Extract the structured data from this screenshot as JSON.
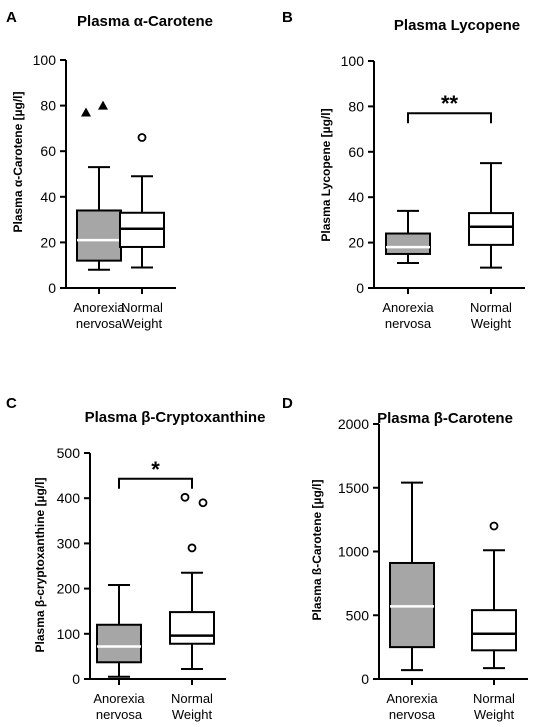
{
  "chart_data": [
    {
      "panel": "A",
      "type": "boxplot",
      "title": "Plasma α-Carotene",
      "ylabel": "Plasma α-Carotene [µg/l]",
      "ylim": [
        0,
        100
      ],
      "yticks": [
        0,
        20,
        40,
        60,
        80,
        100
      ],
      "categories": [
        {
          "line1": "Anorexia",
          "line2": "nervosa"
        },
        {
          "line1": "Normal",
          "line2": "Weight"
        }
      ],
      "boxes": [
        {
          "group": "Anorexia nervosa",
          "fill": "#a6a6a6",
          "min": 8,
          "q1": 12,
          "median": 21,
          "q3": 34,
          "max": 53,
          "outliers": [
            77,
            80
          ],
          "outlier_marker": "triangle"
        },
        {
          "group": "Normal Weight",
          "fill": "#ffffff",
          "min": 9,
          "q1": 18,
          "median": 26,
          "q3": 33,
          "max": 49,
          "outliers": [
            66
          ],
          "outlier_marker": "circle"
        }
      ],
      "significance": null
    },
    {
      "panel": "B",
      "type": "boxplot",
      "title": "Plasma Lycopene",
      "ylabel": "Plasma Lycopene [µg/l]",
      "ylim": [
        0,
        100
      ],
      "yticks": [
        0,
        20,
        40,
        60,
        80,
        100
      ],
      "categories": [
        {
          "line1": "Anorexia",
          "line2": "nervosa"
        },
        {
          "line1": "Normal",
          "line2": "Weight"
        }
      ],
      "boxes": [
        {
          "group": "Anorexia nervosa",
          "fill": "#a6a6a6",
          "min": 11,
          "q1": 15,
          "median": 18,
          "q3": 24,
          "max": 34,
          "outliers": [],
          "outlier_marker": "circle"
        },
        {
          "group": "Normal Weight",
          "fill": "#ffffff",
          "min": 9,
          "q1": 19,
          "median": 27,
          "q3": 33,
          "max": 55,
          "outliers": [],
          "outlier_marker": "circle"
        }
      ],
      "significance": {
        "label": "**",
        "y": 77
      }
    },
    {
      "panel": "C",
      "type": "boxplot",
      "title": "Plasma β-Cryptoxanthine",
      "ylabel": "Plasma β-cryptoxanthine [µg/l]",
      "ylim": [
        0,
        500
      ],
      "yticks": [
        0,
        100,
        200,
        300,
        400,
        500
      ],
      "categories": [
        {
          "line1": "Anorexia",
          "line2": "nervosa"
        },
        {
          "line1": "Normal",
          "line2": "Weight"
        }
      ],
      "boxes": [
        {
          "group": "Anorexia nervosa",
          "fill": "#a6a6a6",
          "min": 5,
          "q1": 37,
          "median": 72,
          "q3": 120,
          "max": 208,
          "outliers": [],
          "outlier_marker": "circle"
        },
        {
          "group": "Normal Weight",
          "fill": "#ffffff",
          "min": 22,
          "q1": 78,
          "median": 96,
          "q3": 148,
          "max": 235,
          "outliers": [
            290,
            390,
            402
          ],
          "outlier_marker": "circle"
        }
      ],
      "significance": {
        "label": "*",
        "y": 443
      }
    },
    {
      "panel": "D",
      "type": "boxplot",
      "title": "Plasma β-Carotene",
      "ylabel": "Plasma ß-Carotene [µg/l]",
      "ylim": [
        0,
        2000
      ],
      "yticks": [
        0,
        500,
        1000,
        1500,
        2000
      ],
      "categories": [
        {
          "line1": "Anorexia",
          "line2": "nervosa"
        },
        {
          "line1": "Normal",
          "line2": "Weight"
        }
      ],
      "boxes": [
        {
          "group": "Anorexia nervosa",
          "fill": "#a6a6a6",
          "min": 70,
          "q1": 250,
          "median": 570,
          "q3": 910,
          "max": 1540,
          "outliers": [],
          "outlier_marker": "circle"
        },
        {
          "group": "Normal Weight",
          "fill": "#ffffff",
          "min": 85,
          "q1": 225,
          "median": 355,
          "q3": 540,
          "max": 1010,
          "outliers": [
            1200
          ],
          "outlier_marker": "circle"
        }
      ],
      "significance": null
    }
  ]
}
